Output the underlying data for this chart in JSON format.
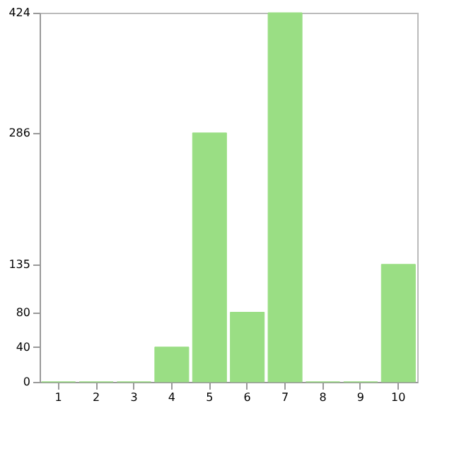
{
  "chart_data": {
    "type": "bar",
    "categories": [
      "1",
      "2",
      "3",
      "4",
      "5",
      "6",
      "7",
      "8",
      "9",
      "10"
    ],
    "values": [
      0,
      0,
      0,
      40,
      286,
      80,
      424,
      0,
      0,
      135
    ],
    "color": "#9ade84",
    "ylim": [
      0,
      424
    ],
    "yticks": [
      0,
      40,
      80,
      135,
      286,
      424
    ],
    "grid": false
  }
}
